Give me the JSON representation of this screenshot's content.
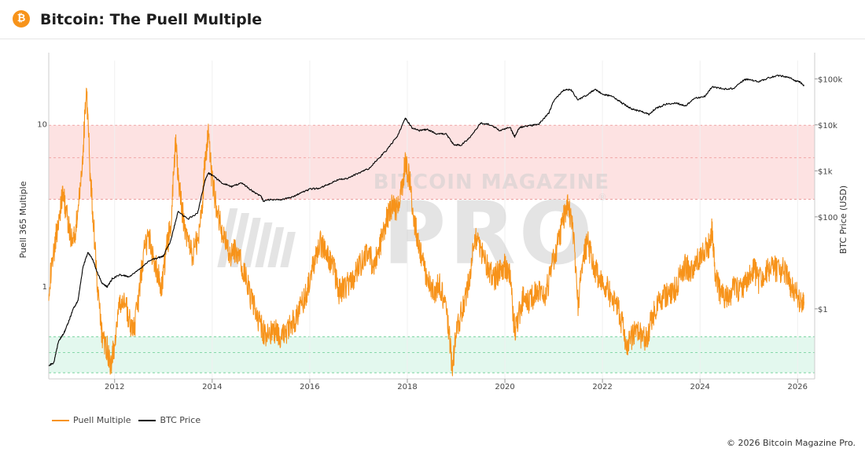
{
  "header": {
    "logo_glyph": "₿",
    "title": "Bitcoin: The Puell Multiple"
  },
  "footer": {
    "copyright": "© 2026 Bitcoin Magazine Pro."
  },
  "watermark": {
    "line1": "BITCOIN MAGAZINE",
    "line2": "PRO",
    "reg": "®"
  },
  "colors": {
    "puell": "#f7931a",
    "btc": "#000000",
    "top_band": "#fde2e2",
    "bottom_band": "#e3f8ee",
    "top_line": "#e88a8a",
    "bottom_line": "#5cc98a",
    "watermark": "#cfcfcf"
  },
  "chart_data": {
    "type": "line",
    "title": "Bitcoin: The Puell Multiple",
    "xlabel": "",
    "ylabel_left": "Puell 365 Multiple",
    "ylabel_right": "BTC Price (USD)",
    "x_range": [
      2010.65,
      2026.35
    ],
    "x_ticks": [
      {
        "value": 2012,
        "label": "2012"
      },
      {
        "value": 2014,
        "label": "2014"
      },
      {
        "value": 2016,
        "label": "2016"
      },
      {
        "value": 2018,
        "label": "2018"
      },
      {
        "value": 2020,
        "label": "2020"
      },
      {
        "value": 2022,
        "label": "2022"
      },
      {
        "value": 2024,
        "label": "2024"
      },
      {
        "value": 2026,
        "label": "2026"
      }
    ],
    "y_left": {
      "scale": "log",
      "range": [
        0.275,
        25
      ],
      "ticks": [
        {
          "value": 1,
          "label": "1"
        },
        {
          "value": 10,
          "label": "10"
        }
      ]
    },
    "y_right": {
      "scale": "log",
      "range": [
        0.03,
        250000
      ],
      "ticks": [
        {
          "value": 1,
          "label": "$1"
        },
        {
          "value": 100,
          "label": "$100"
        },
        {
          "value": 1000,
          "label": "$1k"
        },
        {
          "value": 10000,
          "label": "$10k"
        },
        {
          "value": 100000,
          "label": "$100k"
        }
      ]
    },
    "bands": [
      {
        "name": "top",
        "from": 3.5,
        "to": 10,
        "dashed_lines": [
          3.5,
          6.3,
          10
        ]
      },
      {
        "name": "bottom",
        "from": 0.3,
        "to": 0.5,
        "dashed_lines": [
          0.3,
          0.4,
          0.5
        ]
      }
    ],
    "legend": {
      "placement": "bottom-left"
    },
    "series": [
      {
        "name": "Puell Multiple",
        "axis": "left",
        "x": [
          2010.65,
          2010.75,
          2010.85,
          2010.95,
          2011.05,
          2011.15,
          2011.25,
          2011.35,
          2011.42,
          2011.5,
          2011.58,
          2011.66,
          2011.75,
          2011.85,
          2011.92,
          2012.0,
          2012.1,
          2012.2,
          2012.3,
          2012.4,
          2012.5,
          2012.6,
          2012.7,
          2012.8,
          2012.9,
          2012.95,
          2013.05,
          2013.15,
          2013.25,
          2013.32,
          2013.4,
          2013.5,
          2013.6,
          2013.7,
          2013.8,
          2013.85,
          2013.92,
          2014.0,
          2014.1,
          2014.2,
          2014.3,
          2014.4,
          2014.5,
          2014.6,
          2014.7,
          2014.8,
          2014.9,
          2015.0,
          2015.1,
          2015.2,
          2015.3,
          2015.4,
          2015.5,
          2015.6,
          2015.7,
          2015.8,
          2015.9,
          2016.0,
          2016.1,
          2016.2,
          2016.3,
          2016.4,
          2016.5,
          2016.6,
          2016.7,
          2016.8,
          2016.9,
          2017.0,
          2017.1,
          2017.2,
          2017.3,
          2017.4,
          2017.5,
          2017.6,
          2017.7,
          2017.8,
          2017.9,
          2017.96,
          2018.05,
          2018.15,
          2018.25,
          2018.35,
          2018.45,
          2018.55,
          2018.65,
          2018.75,
          2018.85,
          2018.92,
          2019.0,
          2019.1,
          2019.2,
          2019.3,
          2019.4,
          2019.5,
          2019.6,
          2019.7,
          2019.8,
          2019.9,
          2020.0,
          2020.1,
          2020.2,
          2020.3,
          2020.4,
          2020.5,
          2020.6,
          2020.7,
          2020.8,
          2020.9,
          2021.0,
          2021.1,
          2021.2,
          2021.3,
          2021.4,
          2021.5,
          2021.6,
          2021.7,
          2021.8,
          2021.9,
          2022.0,
          2022.1,
          2022.2,
          2022.3,
          2022.4,
          2022.5,
          2022.6,
          2022.7,
          2022.8,
          2022.9,
          2023.0,
          2023.1,
          2023.2,
          2023.3,
          2023.4,
          2023.5,
          2023.6,
          2023.7,
          2023.8,
          2023.9,
          2024.0,
          2024.1,
          2024.2,
          2024.25,
          2024.3,
          2024.4,
          2024.5,
          2024.6,
          2024.7,
          2024.8,
          2024.9,
          2025.0,
          2025.1,
          2025.2,
          2025.3,
          2025.4,
          2025.5,
          2025.6,
          2025.7,
          2025.8,
          2025.9,
          2026.0,
          2026.1,
          2026.13
        ],
        "y": [
          1.0,
          1.6,
          2.7,
          3.8,
          2.4,
          1.9,
          2.8,
          6.5,
          18.0,
          5.0,
          2.2,
          0.9,
          0.48,
          0.42,
          0.33,
          0.45,
          0.75,
          0.85,
          0.62,
          0.55,
          0.9,
          1.7,
          2.1,
          1.5,
          1.2,
          0.95,
          1.6,
          2.5,
          7.8,
          4.2,
          2.8,
          1.9,
          1.6,
          2.0,
          3.2,
          6.0,
          8.5,
          4.5,
          3.0,
          2.2,
          1.8,
          1.6,
          1.7,
          1.4,
          1.1,
          0.85,
          0.7,
          0.58,
          0.5,
          0.52,
          0.55,
          0.5,
          0.52,
          0.6,
          0.62,
          0.75,
          0.88,
          1.1,
          1.5,
          1.9,
          1.7,
          1.5,
          1.3,
          0.95,
          1.0,
          1.05,
          1.15,
          1.3,
          1.5,
          1.6,
          1.4,
          1.6,
          2.2,
          2.8,
          3.2,
          3.0,
          4.2,
          6.0,
          4.5,
          2.5,
          1.8,
          1.3,
          1.1,
          0.95,
          1.05,
          0.85,
          0.55,
          0.32,
          0.5,
          0.7,
          0.85,
          1.3,
          2.0,
          1.7,
          1.45,
          1.25,
          1.15,
          1.3,
          1.35,
          1.2,
          0.55,
          0.7,
          0.95,
          0.82,
          0.9,
          0.95,
          0.85,
          1.1,
          1.5,
          1.9,
          2.7,
          3.2,
          2.2,
          0.8,
          1.5,
          1.9,
          1.4,
          1.2,
          1.05,
          0.98,
          0.85,
          0.8,
          0.6,
          0.45,
          0.5,
          0.55,
          0.5,
          0.48,
          0.62,
          0.75,
          0.85,
          0.9,
          0.92,
          1.0,
          1.2,
          1.35,
          1.3,
          1.4,
          1.55,
          1.7,
          1.85,
          2.3,
          1.3,
          0.95,
          0.88,
          0.9,
          1.0,
          0.95,
          1.05,
          1.2,
          1.3,
          1.1,
          1.2,
          1.3,
          1.35,
          1.25,
          1.3,
          1.2,
          0.95,
          0.9,
          0.75,
          0.82
        ]
      },
      {
        "name": "BTC Price",
        "axis": "right",
        "x": [
          2010.65,
          2010.75,
          2010.85,
          2010.95,
          2011.05,
          2011.15,
          2011.25,
          2011.35,
          2011.45,
          2011.55,
          2011.65,
          2011.75,
          2011.85,
          2011.95,
          2012.1,
          2012.3,
          2012.5,
          2012.7,
          2012.9,
          2013.0,
          2013.15,
          2013.3,
          2013.5,
          2013.7,
          2013.85,
          2013.92,
          2014.0,
          2014.2,
          2014.4,
          2014.6,
          2014.8,
          2015.0,
          2015.05,
          2015.2,
          2015.4,
          2015.6,
          2015.8,
          2016.0,
          2016.2,
          2016.4,
          2016.6,
          2016.8,
          2017.0,
          2017.2,
          2017.4,
          2017.6,
          2017.8,
          2017.96,
          2018.1,
          2018.25,
          2018.4,
          2018.6,
          2018.8,
          2018.95,
          2019.1,
          2019.3,
          2019.5,
          2019.7,
          2019.9,
          2020.1,
          2020.2,
          2020.3,
          2020.5,
          2020.7,
          2020.9,
          2021.0,
          2021.2,
          2021.35,
          2021.5,
          2021.7,
          2021.85,
          2022.0,
          2022.2,
          2022.4,
          2022.6,
          2022.8,
          2022.95,
          2023.1,
          2023.3,
          2023.5,
          2023.7,
          2023.9,
          2024.1,
          2024.25,
          2024.5,
          2024.7,
          2024.9,
          2025.0,
          2025.2,
          2025.4,
          2025.6,
          2025.8,
          2025.95,
          2026.05,
          2026.13
        ],
        "y": [
          0.06,
          0.065,
          0.2,
          0.28,
          0.5,
          1.0,
          1.5,
          8.0,
          17.0,
          12.0,
          6.0,
          3.5,
          3.0,
          4.5,
          5.5,
          5.0,
          7.0,
          11.0,
          13.0,
          14.0,
          30.0,
          130.0,
          90.0,
          120.0,
          600.0,
          900.0,
          800.0,
          550.0,
          450.0,
          550.0,
          380.0,
          280.0,
          220.0,
          240.0,
          235.0,
          260.0,
          320.0,
          400.0,
          420.0,
          520.0,
          650.0,
          700.0,
          900.0,
          1100.0,
          1800.0,
          3000.0,
          5800.0,
          14000.0,
          8500.0,
          7500.0,
          8000.0,
          6400.0,
          6300.0,
          3700.0,
          3600.0,
          5500.0,
          11000.0,
          10000.0,
          7500.0,
          9000.0,
          5500.0,
          8800.0,
          9500.0,
          10500.0,
          18000.0,
          33000.0,
          57000.0,
          58000.0,
          35000.0,
          45000.0,
          60000.0,
          46000.0,
          42000.0,
          30000.0,
          22000.0,
          19500.0,
          16800.0,
          23000.0,
          28000.0,
          30000.0,
          26000.0,
          38000.0,
          42000.0,
          68000.0,
          60000.0,
          62000.0,
          95000.0,
          98000.0,
          85000.0,
          105000.0,
          117000.0,
          110000.0,
          90000.0,
          85000.0,
          70000.0
        ]
      }
    ]
  }
}
